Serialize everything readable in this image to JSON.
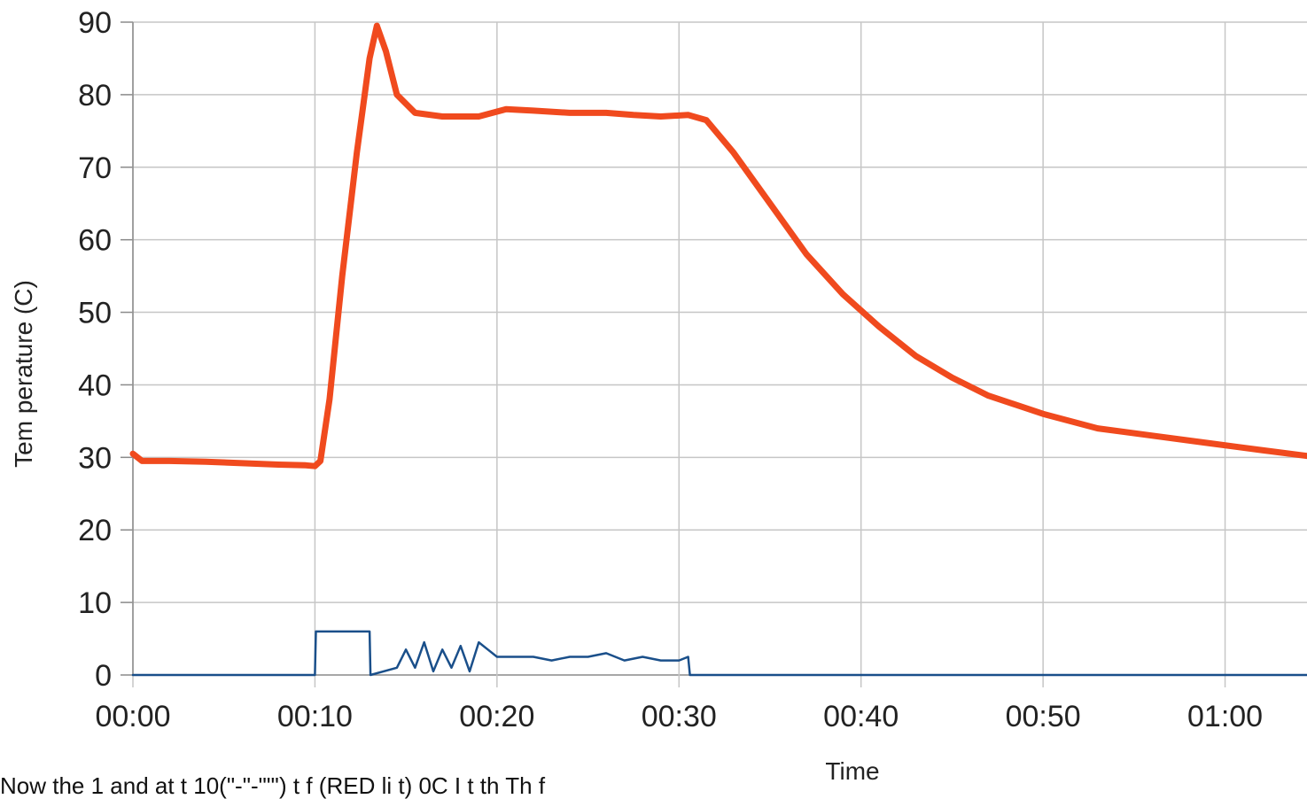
{
  "chart_data": {
    "type": "line",
    "xlabel": "Time",
    "ylabel": "Tem perature (C)",
    "xlim": [
      0,
      64.5
    ],
    "ylim": [
      0,
      90
    ],
    "x_ticks": [
      0,
      10,
      20,
      30,
      40,
      50,
      60
    ],
    "x_tick_labels": [
      "00:00",
      "00:10",
      "00:20",
      "00:30",
      "00:40",
      "00:50",
      "01:00"
    ],
    "y_ticks": [
      0,
      10,
      20,
      30,
      40,
      50,
      60,
      70,
      80,
      90
    ],
    "y_tick_labels": [
      "0",
      "10",
      "20",
      "30",
      "40",
      "50",
      "60",
      "70",
      "80",
      "90"
    ],
    "grid": true,
    "legend": "none",
    "series": [
      {
        "color": "#f04a1e",
        "x": [
          0,
          0.5,
          2,
          4,
          6,
          8,
          9.5,
          10,
          10.3,
          10.8,
          11.5,
          12.3,
          13,
          13.4,
          13.9,
          14.5,
          15.5,
          17,
          19,
          20.5,
          22,
          24,
          26,
          27.5,
          29,
          30.5,
          31.5,
          33,
          35,
          37,
          39,
          41,
          43,
          45,
          47,
          50,
          53,
          56,
          59,
          62,
          64.5
        ],
        "values": [
          30.5,
          29.5,
          29.5,
          29.4,
          29.2,
          29,
          28.9,
          28.8,
          29.5,
          38,
          55,
          72,
          85,
          89.5,
          86,
          80,
          77.5,
          77,
          77,
          78,
          77.8,
          77.5,
          77.5,
          77.2,
          77,
          77.2,
          76.5,
          72,
          65,
          58,
          52.5,
          48,
          44,
          41,
          38.5,
          36,
          34,
          33,
          32,
          31,
          30.2
        ]
      },
      {
        "color": "#1a4f8a",
        "x": [
          0,
          10,
          10.05,
          13,
          13.05,
          14.5,
          15,
          15.5,
          16,
          16.5,
          17,
          17.5,
          18,
          18.5,
          19,
          19.5,
          20,
          21,
          22,
          23,
          24,
          25,
          26,
          27,
          28,
          29,
          30,
          30.5,
          30.6,
          64.5
        ],
        "values": [
          0,
          0,
          6,
          6,
          0,
          1,
          3.5,
          1,
          4.5,
          0.5,
          3.5,
          1,
          4,
          0.5,
          4.5,
          3.5,
          2.5,
          2.5,
          2.5,
          2,
          2.5,
          2.5,
          3,
          2,
          2.5,
          2,
          2,
          2.5,
          0,
          0
        ]
      }
    ]
  },
  "caption_text": "Now the 1 and at t 10(\"-\"-\"\"') t f (RED li t) 0C I t th Th f"
}
